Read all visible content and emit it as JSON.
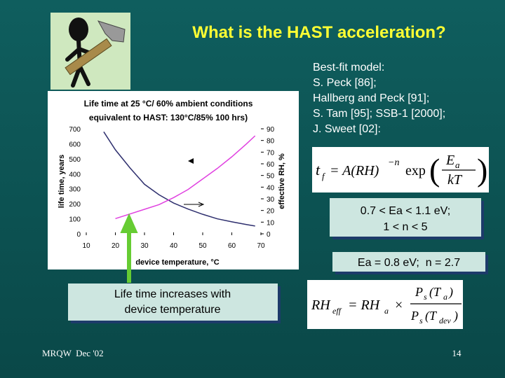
{
  "header": {
    "title": "What is the HAST acceleration?"
  },
  "model": {
    "heading": "Best-fit model:",
    "refs": [
      "S. Peck [86];",
      "Hallberg and Peck [91];",
      "S. Tam [95]; SSB-1 [2000];",
      "J. Sweet [02]:"
    ]
  },
  "formula_1": {
    "t": "t",
    "t_sub": "f",
    "eq": "= A(RH)",
    "power": "−n",
    "func": "exp",
    "open": "(",
    "num": "E",
    "num_sub": "a",
    "den": "kT",
    "close": ")"
  },
  "range_box": {
    "lines": [
      "0.7 < Ea < 1.1 eV;",
      "1 < n < 5"
    ]
  },
  "fit_box": {
    "text": "Ea = 0.8 eV;  n = 2.7"
  },
  "callout": {
    "lines": [
      "Life time increases with",
      "device temperature"
    ]
  },
  "formula_2": {
    "lhs": "RH",
    "lhs_sub": "eff",
    "eq": "= RH",
    "eq_sub": "a",
    "times": "×",
    "num": {
      "p": "P",
      "p_sub": "s",
      "arg": "(T",
      "arg_sub": "a",
      "close": ")"
    },
    "den": {
      "p": "P",
      "p_sub": "s",
      "arg": "(T",
      "arg_sub": "dev",
      "close": ")"
    }
  },
  "footer": {
    "left": "MRQW  Dec '02",
    "page": "14"
  },
  "chart_data": {
    "type": "line",
    "title": [
      "Life time at 25 °C/ 60% ambient conditions",
      "equivalent to HAST: 130°C/85% 100 hrs)"
    ],
    "xlabel": "device temperature, °C",
    "ylabel": "life time, years",
    "y2label": "effective RH, %",
    "xlim": [
      10,
      70
    ],
    "xticks": [
      10,
      20,
      30,
      40,
      50,
      60,
      70
    ],
    "ylim": [
      0,
      700
    ],
    "yticks": [
      0,
      100,
      200,
      300,
      400,
      500,
      600,
      700
    ],
    "y2lim": [
      0,
      90
    ],
    "y2ticks": [
      0,
      10,
      20,
      30,
      40,
      50,
      60,
      70,
      80,
      90
    ],
    "series": [
      {
        "color": "#2e2f6e",
        "x": [
          16,
          20,
          25,
          30,
          35,
          40,
          45,
          50,
          55,
          60,
          65,
          68
        ],
        "values": [
          680,
          560,
          440,
          330,
          260,
          205,
          165,
          130,
          100,
          80,
          62,
          52
        ]
      },
      {
        "color": "#e040e0",
        "axis": "y2",
        "x": [
          20,
          25,
          30,
          35,
          40,
          45,
          50,
          55,
          60,
          65,
          68
        ],
        "values": [
          13,
          17,
          21,
          25,
          31,
          38,
          47,
          56,
          66,
          77,
          84
        ]
      }
    ]
  }
}
